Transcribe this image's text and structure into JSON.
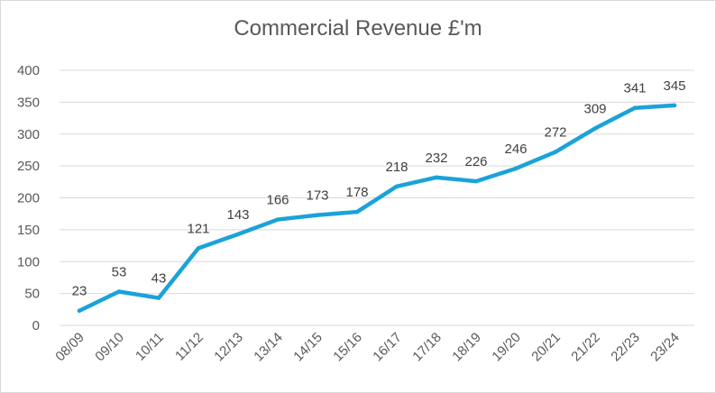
{
  "chart_data": {
    "type": "line",
    "title": "Commercial Revenue £'m",
    "xlabel": "",
    "ylabel": "",
    "categories": [
      "08/09",
      "09/10",
      "10/11",
      "11/12",
      "12/13",
      "13/14",
      "14/15",
      "15/16",
      "16/17",
      "17/18",
      "18/19",
      "19/20",
      "20/21",
      "21/22",
      "22/23",
      "23/24"
    ],
    "series": [
      {
        "values": [
          23,
          53,
          43,
          121,
          143,
          166,
          173,
          178,
          218,
          232,
          226,
          246,
          272,
          309,
          341,
          345
        ],
        "color": "#1aa3d8"
      }
    ],
    "ylim": [
      0,
      400
    ],
    "yticks": [
      0,
      50,
      100,
      150,
      200,
      250,
      300,
      350,
      400
    ],
    "grid": true,
    "legend": "none",
    "data_labels": true
  }
}
